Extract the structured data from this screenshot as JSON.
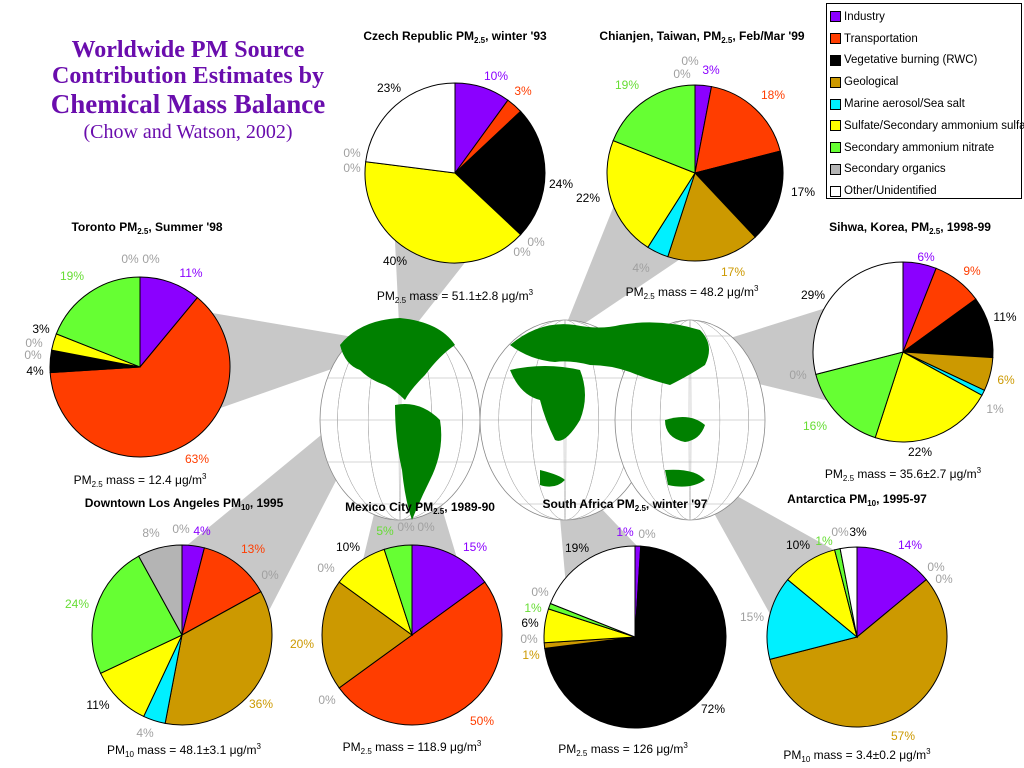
{
  "title": {
    "line1": "Worldwide PM Source",
    "line2": "Contribution Estimates by",
    "line3": "Chemical Mass Balance",
    "line4": "(Chow and Watson, 2002)"
  },
  "colors": {
    "industry": "#8b00ff",
    "transportation": "#ff3d00",
    "vegetative": "#000000",
    "geological": "#cc9900",
    "marine": "#00f0ff",
    "sulfate": "#ffff00",
    "nitrate": "#66ff33",
    "organics": "#b4b4b4",
    "other": "#ffffff",
    "map_land": "#008000",
    "wedge": "#c8c8c8"
  },
  "chart_data": {
    "type": "pie",
    "legend_position": "top-right",
    "legend": [
      {
        "key": "industry",
        "label": "Industry"
      },
      {
        "key": "transportation",
        "label": "Transportation"
      },
      {
        "key": "vegetative",
        "label": "Vegetative burning (RWC)"
      },
      {
        "key": "geological",
        "label": "Geological"
      },
      {
        "key": "marine",
        "label": "Marine aerosol/Sea salt"
      },
      {
        "key": "sulfate",
        "label": "Sulfate/Secondary ammonium sulfate"
      },
      {
        "key": "nitrate",
        "label": "Secondary ammonium nitrate"
      },
      {
        "key": "organics",
        "label": "Secondary organics"
      },
      {
        "key": "other",
        "label": "Other/Unidentified"
      }
    ],
    "charts": [
      {
        "id": "czech",
        "title_pre": "Czech Republic PM",
        "title_sub": "2.5",
        "title_post": ", winter '93",
        "mass_pre": "PM",
        "mass_sub": "2.5",
        "mass_post": " mass = 51.1±2.8 μg/m",
        "mass_sup": "3",
        "values": [
          10,
          3,
          24,
          0,
          0,
          40,
          0,
          0,
          23
        ],
        "labels": [
          "10%",
          "3%",
          "24%",
          "0%",
          "0%",
          "40%",
          "0%",
          "0%",
          "23%"
        ]
      },
      {
        "id": "taiwan",
        "title_pre": "Chianjen, Taiwan, PM",
        "title_sub": "2.5",
        "title_post": ", Feb/Mar '99",
        "mass_pre": "PM",
        "mass_sub": "2.5",
        "mass_post": " mass = 48.2 μg/m",
        "mass_sup": "3",
        "values": [
          3,
          18,
          17,
          17,
          4,
          22,
          19,
          0,
          0
        ],
        "labels": [
          "3%",
          "18%",
          "17%",
          "17%",
          "4%",
          "22%",
          "19%",
          "0%",
          "0%"
        ]
      },
      {
        "id": "toronto",
        "title_pre": "Toronto PM",
        "title_sub": "2.5",
        "title_post": ", Summer '98",
        "mass_pre": "PM",
        "mass_sub": "2.5",
        "mass_post": " mass = 12.4 μg/m",
        "mass_sup": "3",
        "values": [
          11,
          63,
          4,
          0,
          0,
          3,
          19,
          0,
          0
        ],
        "labels": [
          "11%",
          "63%",
          "4%",
          "0%",
          "0%",
          "3%",
          "19%",
          "0%",
          "0%"
        ]
      },
      {
        "id": "korea",
        "title_pre": "Sihwa, Korea, PM",
        "title_sub": "2.5",
        "title_post": ", 1998-99",
        "mass_pre": "PM",
        "mass_sub": "2.5",
        "mass_post": " mass = 35.6±2.7 μg/m",
        "mass_sup": "3",
        "values": [
          6,
          9,
          11,
          6,
          1,
          22,
          16,
          0,
          29
        ],
        "labels": [
          "6%",
          "9%",
          "11%",
          "6%",
          "1%",
          "22%",
          "16%",
          "0%",
          "29%"
        ]
      },
      {
        "id": "la",
        "title_pre": "Downtown Los Angeles PM",
        "title_sub": "10",
        "title_post": ", 1995",
        "mass_pre": "PM",
        "mass_sub": "10",
        "mass_post": " mass = 48.1±3.1 μg/m",
        "mass_sup": "3",
        "values": [
          4,
          13,
          0,
          36,
          4,
          11,
          24,
          8,
          0
        ],
        "labels": [
          "4%",
          "13%",
          "0%",
          "36%",
          "4%",
          "11%",
          "24%",
          "8%",
          "0%"
        ]
      },
      {
        "id": "mexico",
        "title_pre": "Mexico City PM",
        "title_sub": "2.5",
        "title_post": ", 1989-90",
        "mass_pre": "PM",
        "mass_sub": "2.5",
        "mass_post": " mass = 118.9 μg/m",
        "mass_sup": "3",
        "values": [
          15,
          50,
          0,
          20,
          0,
          10,
          5,
          0,
          0
        ],
        "labels": [
          "15%",
          "50%",
          "0%",
          "20%",
          "0%",
          "10%",
          "5%",
          "0%",
          "0%"
        ]
      },
      {
        "id": "safrica",
        "title_pre": "South Africa PM",
        "title_sub": "2.5",
        "title_post": ", winter '97",
        "mass_pre": "PM",
        "mass_sub": "2.5",
        "mass_post": " mass = 126 μg/m",
        "mass_sup": "3",
        "values": [
          1,
          0,
          72,
          1,
          0,
          6,
          1,
          0,
          19
        ],
        "labels": [
          "1%",
          "0%",
          "72%",
          "1%",
          "0%",
          "6%",
          "1%",
          "0%",
          "19%"
        ]
      },
      {
        "id": "antarctica",
        "title_pre": "Antarctica PM",
        "title_sub": "10",
        "title_post": ", 1995-97",
        "mass_pre": "PM",
        "mass_sub": "10",
        "mass_post": " mass = 3.4±0.2 μg/m",
        "mass_sup": "3",
        "values": [
          14,
          0,
          0,
          57,
          15,
          10,
          1,
          0,
          3
        ],
        "labels": [
          "14%",
          "0%",
          "0%",
          "57%",
          "15%",
          "10%",
          "1%",
          "0%",
          "3%"
        ]
      }
    ]
  }
}
